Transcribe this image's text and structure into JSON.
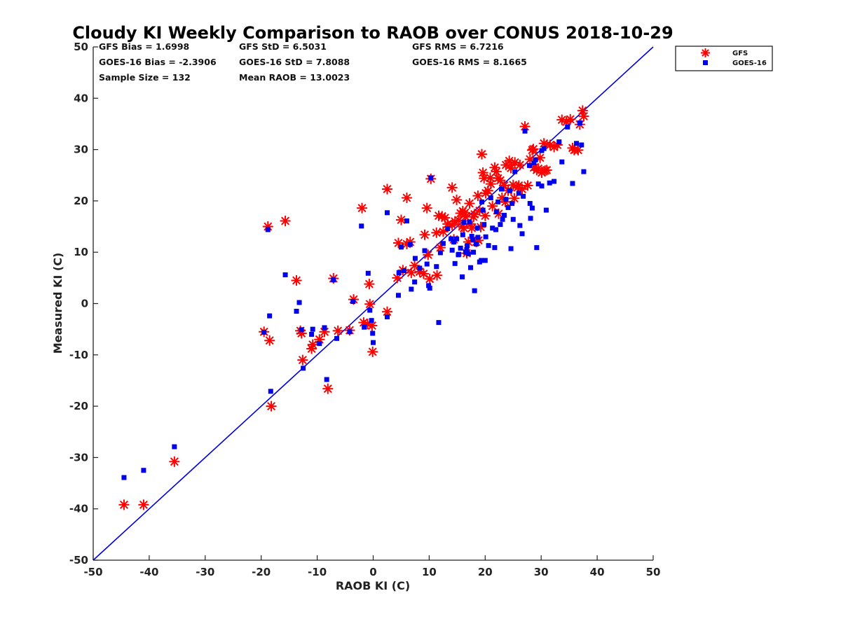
{
  "chart_data": {
    "type": "scatter",
    "title": "Cloudy KI Weekly Comparison to RAOB over CONUS 2018-10-29",
    "xlabel": "RAOB KI (C)",
    "ylabel": "Measured KI (C)",
    "xlim": [
      -50,
      50
    ],
    "ylim": [
      -50,
      50
    ],
    "xticks": [
      "-50",
      "-40",
      "-30",
      "-20",
      "-10",
      "0",
      "10",
      "20",
      "30",
      "40",
      "50"
    ],
    "yticks": [
      "-50",
      "-40",
      "-30",
      "-20",
      "-10",
      "0",
      "10",
      "20",
      "30",
      "40",
      "50"
    ],
    "grid": false,
    "legend_position": "outside-top-right",
    "reference_line": {
      "type": "one-to-one",
      "color": "#0000dd"
    },
    "stats": {
      "gfs_bias": "GFS Bias = 1.6998",
      "gfs_std": "GFS StD = 6.5031",
      "gfs_rms": "GFS RMS = 6.7216",
      "goes_bias": "GOES-16 Bias = -2.3906",
      "goes_std": "GOES-16 StD = 7.8088",
      "goes_rms": "GOES-16 RMS = 8.1665",
      "sample_size": "Sample Size = 132",
      "mean_raob": "Mean RAOB = 13.0023"
    },
    "series": [
      {
        "name": "GFS",
        "marker": "asterisk",
        "color": "#ff0000",
        "points": [
          [
            -44.5,
            -39.2
          ],
          [
            -41.0,
            -39.2
          ],
          [
            -35.5,
            -30.8
          ],
          [
            -19.5,
            -5.5
          ],
          [
            -18.5,
            -7.2
          ],
          [
            -18.8,
            15.0
          ],
          [
            -18.2,
            -20.0
          ],
          [
            -15.7,
            16.1
          ],
          [
            -13.7,
            4.5
          ],
          [
            -13.0,
            -5.3
          ],
          [
            -12.8,
            -5.8
          ],
          [
            -12.6,
            -11.0
          ],
          [
            -11.0,
            -8.8
          ],
          [
            -10.8,
            -8.0
          ],
          [
            -9.6,
            -7.0
          ],
          [
            -8.7,
            -5.5
          ],
          [
            -8.1,
            -16.6
          ],
          [
            -7.1,
            4.9
          ],
          [
            -6.3,
            -5.3
          ],
          [
            -4.2,
            -5.2
          ],
          [
            -3.5,
            0.8
          ],
          [
            -2.0,
            18.6
          ],
          [
            -1.7,
            -3.7
          ],
          [
            -1.0,
            -4.0
          ],
          [
            -0.7,
            3.8
          ],
          [
            -0.6,
            -0.1
          ],
          [
            -0.2,
            -4.3
          ],
          [
            -0.1,
            -9.4
          ],
          [
            2.5,
            -1.6
          ],
          [
            2.5,
            22.3
          ],
          [
            4.3,
            5.0
          ],
          [
            4.5,
            11.8
          ],
          [
            5.0,
            16.3
          ],
          [
            5.3,
            6.5
          ],
          [
            6.0,
            20.6
          ],
          [
            6.0,
            11.6
          ],
          [
            6.6,
            12.0
          ],
          [
            6.8,
            6.0
          ],
          [
            7.4,
            7.4
          ],
          [
            8.3,
            6.2
          ],
          [
            9.2,
            13.4
          ],
          [
            9.6,
            18.6
          ],
          [
            9.8,
            9.5
          ],
          [
            10.1,
            4.8
          ],
          [
            10.3,
            24.3
          ],
          [
            11.3,
            13.8
          ],
          [
            11.4,
            5.5
          ],
          [
            11.7,
            17.1
          ],
          [
            12.0,
            10.9
          ],
          [
            12.5,
            14.0
          ],
          [
            12.8,
            16.7
          ],
          [
            13.3,
            15.5
          ],
          [
            14.1,
            22.6
          ],
          [
            14.4,
            12.5
          ],
          [
            14.6,
            16.0
          ],
          [
            14.9,
            20.2
          ],
          [
            15.3,
            16.2
          ],
          [
            15.6,
            17.6
          ],
          [
            15.9,
            15.0
          ],
          [
            16.0,
            18.0
          ],
          [
            16.2,
            14.7
          ],
          [
            16.5,
            16.9
          ],
          [
            16.7,
            9.8
          ],
          [
            17.0,
            12.0
          ],
          [
            17.2,
            19.5
          ],
          [
            17.4,
            15.5
          ],
          [
            17.6,
            14.7
          ],
          [
            17.9,
            16.9
          ],
          [
            18.1,
            17.4
          ],
          [
            18.4,
            12.0
          ],
          [
            18.7,
            21.0
          ],
          [
            19.0,
            18.1
          ],
          [
            19.4,
            29.1
          ],
          [
            19.6,
            25.5
          ],
          [
            19.8,
            24.4
          ],
          [
            20.0,
            17.1
          ],
          [
            20.1,
            21.5
          ],
          [
            20.5,
            22.0
          ],
          [
            21.0,
            23.3
          ],
          [
            21.3,
            19.0
          ],
          [
            21.7,
            26.5
          ],
          [
            22.0,
            25.7
          ],
          [
            22.3,
            24.4
          ],
          [
            22.7,
            24.0
          ],
          [
            23.0,
            20.6
          ],
          [
            23.4,
            23.0
          ],
          [
            23.7,
            27.0
          ],
          [
            24.1,
            22.0
          ],
          [
            24.3,
            27.8
          ],
          [
            24.6,
            26.4
          ],
          [
            25.0,
            23.1
          ],
          [
            25.3,
            27.5
          ],
          [
            25.8,
            22.6
          ],
          [
            26.2,
            27.0
          ],
          [
            26.6,
            22.3
          ],
          [
            27.1,
            34.5
          ],
          [
            27.6,
            23.0
          ],
          [
            28.0,
            28.1
          ],
          [
            28.4,
            29.9
          ],
          [
            28.7,
            26.5
          ],
          [
            29.2,
            26.0
          ],
          [
            29.5,
            26.3
          ],
          [
            29.8,
            28.4
          ],
          [
            30.1,
            25.5
          ],
          [
            30.5,
            31.2
          ],
          [
            30.7,
            25.9
          ],
          [
            31.0,
            26.0
          ],
          [
            31.6,
            30.9
          ],
          [
            32.3,
            30.5
          ],
          [
            32.9,
            30.9
          ],
          [
            33.7,
            35.8
          ],
          [
            34.5,
            35.4
          ],
          [
            35.2,
            35.9
          ],
          [
            35.6,
            30.3
          ],
          [
            35.9,
            29.9
          ],
          [
            36.6,
            29.9
          ],
          [
            36.9,
            34.9
          ],
          [
            37.4,
            37.6
          ],
          [
            37.6,
            36.5
          ],
          [
            9.0,
            5.8
          ],
          [
            19.2,
            14.9
          ],
          [
            14.1,
            15.3
          ],
          [
            12.3,
            17.0
          ],
          [
            20.9,
            24.5
          ],
          [
            23.6,
            19.8
          ],
          [
            25.2,
            20.5
          ],
          [
            28.6,
            30.1
          ],
          [
            26.0,
            23.0
          ],
          [
            22.4,
            17.5
          ],
          [
            16.4,
            17.7
          ],
          [
            18.8,
            12.3
          ]
        ]
      },
      {
        "name": "GOES-16",
        "marker": "square",
        "color": "#0000ee",
        "points": [
          [
            -44.5,
            -33.9
          ],
          [
            -41.0,
            -32.5
          ],
          [
            -35.5,
            -27.9
          ],
          [
            -19.5,
            -5.6
          ],
          [
            -18.8,
            14.4
          ],
          [
            -18.5,
            -2.4
          ],
          [
            -18.3,
            -17.1
          ],
          [
            -15.7,
            5.6
          ],
          [
            -13.7,
            -1.5
          ],
          [
            -13.2,
            0.2
          ],
          [
            -12.8,
            -5.1
          ],
          [
            -12.5,
            -12.6
          ],
          [
            -11.0,
            -6.0
          ],
          [
            -10.8,
            -5.0
          ],
          [
            -9.6,
            -7.8
          ],
          [
            -8.7,
            -4.7
          ],
          [
            -8.3,
            -14.8
          ],
          [
            -7.1,
            4.6
          ],
          [
            -6.5,
            -6.8
          ],
          [
            -4.2,
            -5.5
          ],
          [
            -3.6,
            0.4
          ],
          [
            -2.1,
            15.1
          ],
          [
            -1.6,
            -4.6
          ],
          [
            -0.9,
            5.9
          ],
          [
            -0.6,
            -1.3
          ],
          [
            -0.3,
            -3.3
          ],
          [
            -0.1,
            -5.8
          ],
          [
            0.0,
            -7.6
          ],
          [
            2.5,
            -2.6
          ],
          [
            2.5,
            17.7
          ],
          [
            4.5,
            1.6
          ],
          [
            4.6,
            6.0
          ],
          [
            5.0,
            11.0
          ],
          [
            5.5,
            6.4
          ],
          [
            6.0,
            16.1
          ],
          [
            6.6,
            11.5
          ],
          [
            6.8,
            2.8
          ],
          [
            7.4,
            4.2
          ],
          [
            7.5,
            8.8
          ],
          [
            8.3,
            6.9
          ],
          [
            9.2,
            10.3
          ],
          [
            9.6,
            7.7
          ],
          [
            9.9,
            3.5
          ],
          [
            10.1,
            3.0
          ],
          [
            10.3,
            24.5
          ],
          [
            11.3,
            7.2
          ],
          [
            11.7,
            -3.7
          ],
          [
            12.0,
            9.9
          ],
          [
            12.5,
            11.7
          ],
          [
            13.3,
            14.6
          ],
          [
            14.1,
            10.4
          ],
          [
            14.4,
            12.0
          ],
          [
            14.6,
            7.8
          ],
          [
            14.9,
            12.6
          ],
          [
            15.3,
            9.6
          ],
          [
            15.6,
            10.8
          ],
          [
            15.9,
            5.2
          ],
          [
            16.0,
            13.4
          ],
          [
            16.2,
            15.8
          ],
          [
            16.5,
            10.0
          ],
          [
            16.7,
            10.5
          ],
          [
            17.0,
            9.7
          ],
          [
            17.2,
            15.9
          ],
          [
            17.4,
            7.0
          ],
          [
            17.6,
            13.1
          ],
          [
            17.9,
            10.0
          ],
          [
            18.1,
            2.5
          ],
          [
            18.4,
            11.6
          ],
          [
            18.7,
            12.9
          ],
          [
            19.0,
            8.1
          ],
          [
            19.3,
            8.4
          ],
          [
            19.6,
            18.2
          ],
          [
            19.8,
            15.4
          ],
          [
            20.0,
            8.4
          ],
          [
            20.1,
            13.0
          ],
          [
            21.0,
            20.6
          ],
          [
            21.3,
            14.7
          ],
          [
            21.7,
            10.9
          ],
          [
            22.0,
            17.9
          ],
          [
            22.3,
            19.8
          ],
          [
            22.7,
            15.4
          ],
          [
            23.1,
            16.4
          ],
          [
            23.4,
            17.2
          ],
          [
            23.7,
            20.3
          ],
          [
            24.1,
            18.7
          ],
          [
            24.4,
            22.0
          ],
          [
            24.6,
            10.7
          ],
          [
            25.0,
            16.4
          ],
          [
            25.3,
            25.7
          ],
          [
            26.2,
            15.2
          ],
          [
            26.6,
            13.6
          ],
          [
            26.8,
            20.9
          ],
          [
            27.1,
            33.6
          ],
          [
            28.0,
            19.5
          ],
          [
            28.1,
            16.6
          ],
          [
            28.4,
            18.6
          ],
          [
            28.7,
            27.4
          ],
          [
            29.2,
            10.9
          ],
          [
            29.5,
            23.3
          ],
          [
            30.1,
            22.9
          ],
          [
            30.5,
            30.2
          ],
          [
            30.9,
            18.2
          ],
          [
            31.5,
            23.5
          ],
          [
            32.3,
            23.8
          ],
          [
            33.2,
            31.5
          ],
          [
            33.7,
            27.6
          ],
          [
            34.7,
            34.4
          ],
          [
            35.6,
            23.4
          ],
          [
            36.3,
            31.2
          ],
          [
            36.9,
            35.2
          ],
          [
            37.2,
            30.9
          ],
          [
            37.6,
            25.7
          ],
          [
            13.9,
            12.6
          ],
          [
            20.6,
            11.3
          ],
          [
            26.0,
            21.5
          ],
          [
            27.9,
            26.9
          ],
          [
            30.1,
            29.8
          ],
          [
            15.2,
            9.5
          ],
          [
            17.8,
            12.4
          ],
          [
            19.4,
            19.8
          ],
          [
            22.9,
            22.3
          ],
          [
            29.0,
            28.0
          ],
          [
            24.8,
            19.5
          ],
          [
            16.8,
            11.3
          ],
          [
            18.6,
            14.7
          ],
          [
            21.9,
            14.4
          ]
        ]
      }
    ]
  }
}
